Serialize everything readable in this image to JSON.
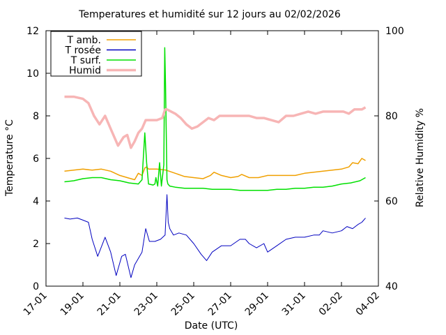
{
  "chart_data": {
    "type": "line",
    "title": "Temperatures et humidité sur 12 jours au 02/02/2026",
    "xlabel": "Date (UTC)",
    "ylabel": "Temperature °C",
    "y2label": "Relative Humidity %",
    "x_ticks": [
      "17-01",
      "19-01",
      "21-01",
      "23-01",
      "25-01",
      "27-01",
      "29-01",
      "31-01",
      "02-02",
      "04-02"
    ],
    "xlim": [
      0,
      18
    ],
    "ylim": [
      0,
      12
    ],
    "y_ticks": [
      0,
      2,
      4,
      6,
      8,
      10,
      12
    ],
    "y2lim": [
      40,
      100
    ],
    "y2_ticks": [
      40,
      60,
      80,
      100
    ],
    "grid": false,
    "legend_position": "top-left",
    "series": [
      {
        "name": "T amb.",
        "axis": "left",
        "color": "#f0a000",
        "x": [
          1,
          1.5,
          2,
          2.5,
          3,
          3.5,
          4,
          4.4,
          4.8,
          5,
          5.2,
          5.35,
          5.45,
          5.55,
          6,
          6.5,
          7,
          7.5,
          8,
          8.5,
          8.9,
          9.1,
          9.5,
          10,
          10.4,
          10.6,
          11,
          11.5,
          12,
          12.5,
          13,
          13.5,
          14,
          14.5,
          15,
          15.5,
          16,
          16.4,
          16.6,
          16.9,
          17.1,
          17.3
        ],
        "values": [
          5.4,
          5.45,
          5.5,
          5.45,
          5.5,
          5.4,
          5.2,
          5.1,
          5.0,
          5.3,
          5.2,
          5.55,
          5.6,
          5.5,
          5.5,
          5.45,
          5.3,
          5.15,
          5.1,
          5.05,
          5.2,
          5.35,
          5.2,
          5.1,
          5.15,
          5.25,
          5.1,
          5.1,
          5.2,
          5.2,
          5.2,
          5.2,
          5.3,
          5.35,
          5.4,
          5.45,
          5.5,
          5.6,
          5.8,
          5.75,
          6.0,
          5.9
        ]
      },
      {
        "name": "T rosée",
        "axis": "left",
        "color": "#0000c0",
        "x": [
          1,
          1.3,
          1.7,
          2,
          2.3,
          2.5,
          2.8,
          3.2,
          3.5,
          3.8,
          4.1,
          4.3,
          4.6,
          4.8,
          5.2,
          5.4,
          5.6,
          5.9,
          6.2,
          6.45,
          6.55,
          6.62,
          6.7,
          6.9,
          7.2,
          7.6,
          8,
          8.4,
          8.7,
          9,
          9.5,
          10,
          10.5,
          10.8,
          11,
          11.4,
          11.8,
          12,
          12.5,
          13,
          13.5,
          14,
          14.5,
          14.8,
          15,
          15.5,
          16,
          16.3,
          16.6,
          16.9,
          17.1,
          17.3
        ],
        "values": [
          3.2,
          3.15,
          3.2,
          3.1,
          3.0,
          2.2,
          1.4,
          2.3,
          1.6,
          0.5,
          1.4,
          1.5,
          0.4,
          1.0,
          1.6,
          2.7,
          2.1,
          2.1,
          2.2,
          2.4,
          4.3,
          3.0,
          2.7,
          2.4,
          2.5,
          2.4,
          2.0,
          1.5,
          1.2,
          1.6,
          1.9,
          1.9,
          2.2,
          2.2,
          2.0,
          1.8,
          2.0,
          1.6,
          1.9,
          2.2,
          2.3,
          2.3,
          2.4,
          2.4,
          2.6,
          2.5,
          2.6,
          2.8,
          2.7,
          2.9,
          3.0,
          3.2
        ]
      },
      {
        "name": "T surf.",
        "axis": "left",
        "color": "#00e000",
        "x": [
          1,
          1.5,
          2,
          2.5,
          3,
          3.5,
          4,
          4.5,
          5,
          5.2,
          5.35,
          5.45,
          5.55,
          5.8,
          5.9,
          5.95,
          6.05,
          6.15,
          6.25,
          6.38,
          6.43,
          6.47,
          6.55,
          6.6,
          6.7,
          7,
          7.5,
          8,
          8.5,
          9,
          9.5,
          10,
          10.5,
          11,
          11.5,
          12,
          12.5,
          13,
          13.5,
          14,
          14.5,
          15,
          15.5,
          16,
          16.5,
          17,
          17.3
        ],
        "values": [
          4.9,
          4.95,
          5.05,
          5.1,
          5.1,
          5.0,
          4.95,
          4.85,
          4.8,
          5.0,
          7.2,
          5.8,
          4.8,
          4.75,
          4.8,
          5.1,
          4.7,
          5.8,
          4.7,
          5.7,
          11.2,
          9.5,
          5.0,
          4.8,
          4.7,
          4.65,
          4.6,
          4.6,
          4.6,
          4.55,
          4.55,
          4.55,
          4.5,
          4.5,
          4.5,
          4.5,
          4.55,
          4.55,
          4.6,
          4.6,
          4.65,
          4.65,
          4.7,
          4.8,
          4.85,
          4.95,
          5.1
        ]
      },
      {
        "name": "Humid",
        "axis": "right",
        "color": "#f7b5b5",
        "x": [
          1,
          1.5,
          2,
          2.3,
          2.6,
          2.9,
          3.2,
          3.6,
          3.9,
          4.2,
          4.4,
          4.6,
          4.8,
          5,
          5.2,
          5.4,
          5.6,
          6,
          6.3,
          6.45,
          6.55,
          7,
          7.3,
          7.6,
          7.9,
          8.2,
          8.5,
          8.8,
          9.1,
          9.4,
          9.8,
          10.2,
          10.6,
          11,
          11.4,
          11.8,
          12.2,
          12.6,
          13,
          13.4,
          13.8,
          14.2,
          14.6,
          15,
          15.4,
          15.8,
          16.1,
          16.4,
          16.7,
          16.9,
          17.1,
          17.3
        ],
        "values": [
          84.5,
          84.5,
          84,
          83,
          80,
          78,
          80,
          76,
          73,
          75,
          75.5,
          72.5,
          74,
          76,
          77,
          79,
          79,
          79,
          79.5,
          81.5,
          81.5,
          80.5,
          79.5,
          78,
          77,
          77.5,
          78.5,
          79.5,
          79,
          80,
          80,
          80,
          80,
          80,
          79.5,
          79.5,
          79,
          78.5,
          80,
          80,
          80.5,
          81,
          80.5,
          81,
          81,
          81,
          81,
          80.5,
          81.5,
          81.5,
          81.5,
          82
        ]
      }
    ]
  }
}
